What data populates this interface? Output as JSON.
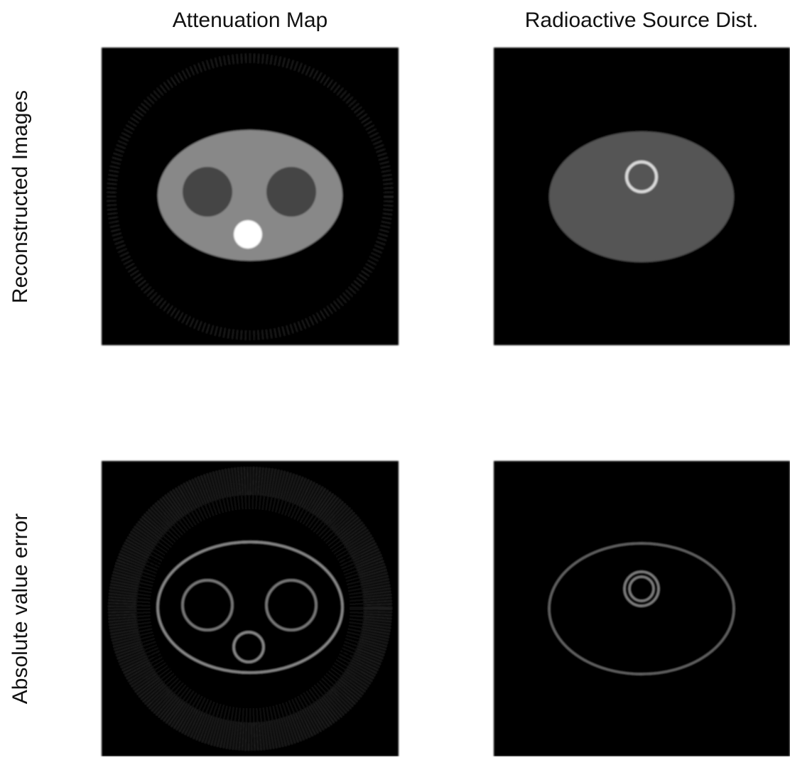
{
  "columns": [
    "Attenuation Map",
    "Radioactive Source Dist."
  ],
  "rows": [
    "Reconstructed Images",
    "Absolute value error"
  ]
}
